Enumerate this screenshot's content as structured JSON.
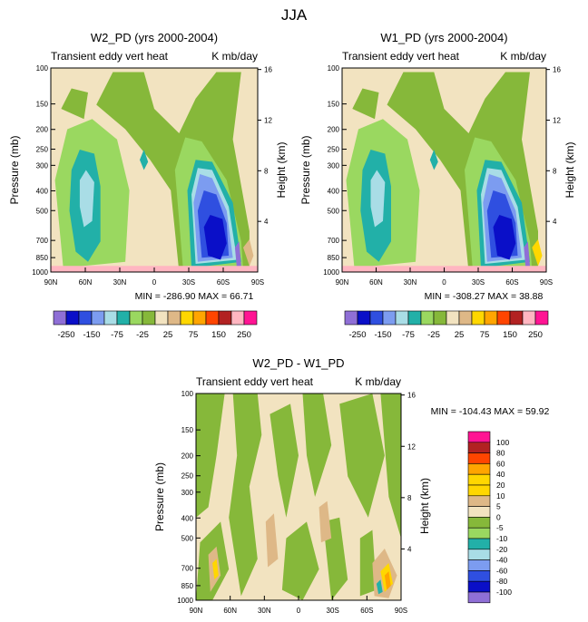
{
  "page_title": "JJA",
  "colors": {
    "zone_neg_250": "#8f6fd6",
    "zone_neg_200": "#0a0fc8",
    "zone_neg_150": "#2f4fe0",
    "zone_neg_100": "#7c9cf0",
    "zone_neg_75": "#a9dde6",
    "zone_neg_50": "#22b0a8",
    "zone_neg_25": "#9ad860",
    "zone_low": "#86b83a",
    "zone_pos_25": "#f2e3c0",
    "zone_pos_50": "#deb887",
    "zone_pos_75": "#ffd700",
    "zone_pos_100": "#ffa500",
    "zone_pos_150": "#ff4500",
    "zone_pos_200": "#b22222",
    "zone_pos_250": "#ffb6c1",
    "zone_top": "#ff1493",
    "frame": "#000000"
  },
  "chart_data": [
    {
      "type": "heatmap",
      "title": "W2_PD (yrs 2000-2004)",
      "subtitle_left": "Transient eddy vert heat",
      "subtitle_right": "K mb/day",
      "ylabel": "Pressure (mb)",
      "ylabel_right": "Height (km)",
      "x_ticks": [
        "90N",
        "60N",
        "30N",
        "0",
        "30S",
        "60S",
        "90S"
      ],
      "y_ticks": [
        "100",
        "150",
        "200",
        "250",
        "300",
        "400",
        "500",
        "700",
        "850",
        "1000"
      ],
      "y_ticks_right": [
        "16",
        "12",
        "8",
        "4"
      ],
      "stats": "MIN = -286.90   MAX =  66.71",
      "min": -286.9,
      "max": 66.71,
      "colorbar_labels": [
        "-250",
        "-150",
        "-75",
        "-25",
        "25",
        "75",
        "150",
        "250"
      ]
    },
    {
      "type": "heatmap",
      "title": "W1_PD (yrs 2000-2004)",
      "subtitle_left": "Transient eddy vert heat",
      "subtitle_right": "K mb/day",
      "ylabel": "Pressure (mb)",
      "ylabel_right": "Height (km)",
      "x_ticks": [
        "90N",
        "60N",
        "30N",
        "0",
        "30S",
        "60S",
        "90S"
      ],
      "y_ticks": [
        "100",
        "150",
        "200",
        "250",
        "300",
        "400",
        "500",
        "700",
        "850",
        "1000"
      ],
      "y_ticks_right": [
        "16",
        "12",
        "8",
        "4"
      ],
      "stats": "MIN = -308.27   MAX =  38.88",
      "min": -308.27,
      "max": 38.88,
      "colorbar_labels": [
        "-250",
        "-150",
        "-75",
        "-25",
        "25",
        "75",
        "150",
        "250"
      ]
    },
    {
      "type": "heatmap",
      "title": "W2_PD - W1_PD",
      "subtitle_left": "Transient eddy vert heat",
      "subtitle_right": "K mb/day",
      "ylabel": "Pressure (mb)",
      "ylabel_right": "Height (km)",
      "x_ticks": [
        "90N",
        "60N",
        "30N",
        "0",
        "30S",
        "60S",
        "90S"
      ],
      "y_ticks": [
        "100",
        "150",
        "200",
        "250",
        "300",
        "400",
        "500",
        "700",
        "850",
        "1000"
      ],
      "y_ticks_right": [
        "16",
        "12",
        "8",
        "4"
      ],
      "stats": "MIN = -104.43  MAX =  59.92",
      "min": -104.43,
      "max": 59.92,
      "colorbar_labels": [
        "100",
        "80",
        "60",
        "40",
        "20",
        "10",
        "5",
        "0",
        "-5",
        "-10",
        "-20",
        "-40",
        "-60",
        "-80",
        "-100"
      ]
    }
  ]
}
